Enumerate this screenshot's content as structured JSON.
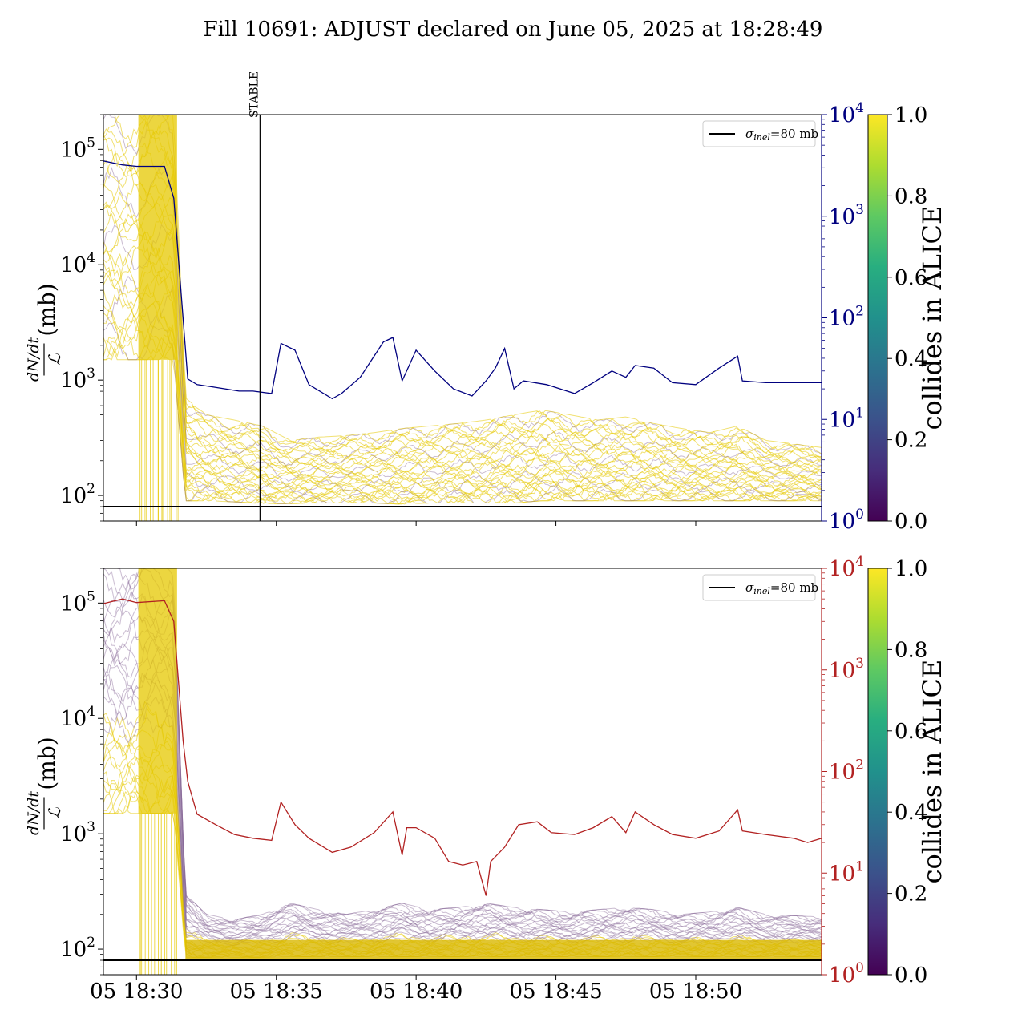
{
  "figure": {
    "title": "Fill 10691: ADJUST declared on June 05, 2025 at 18:28:49"
  },
  "chart_data": [
    {
      "type": "line",
      "panel": "top",
      "ylabel_left_numer": "dN/dt",
      "ylabel_left_denom": "ℒ",
      "ylabel_left_unit": "(mb)",
      "yscale_left": "log",
      "ylim_left": [
        60,
        200000
      ],
      "yticks_left": [
        {
          "mant": "10",
          "exp": "2",
          "value": 100
        },
        {
          "mant": "10",
          "exp": "3",
          "value": 1000
        },
        {
          "mant": "10",
          "exp": "4",
          "value": 10000
        },
        {
          "mant": "10",
          "exp": "5",
          "value": 100000
        }
      ],
      "yscale_right": "log",
      "ylim_right": [
        1,
        10000
      ],
      "yticks_right": [
        {
          "mant": "10",
          "exp": "0",
          "value": 1
        },
        {
          "mant": "10",
          "exp": "1",
          "value": 10
        },
        {
          "mant": "10",
          "exp": "2",
          "value": 100
        },
        {
          "mant": "10",
          "exp": "3",
          "value": 1000
        },
        {
          "mant": "10",
          "exp": "4",
          "value": 10000
        }
      ],
      "right_axis_color": "#00007f",
      "xlim": [
        "2025-06-05 18:28:49",
        "2025-06-05 18:54:30"
      ],
      "xticks": [
        "2025-06-05 18:30:00",
        "2025-06-05 18:35:00",
        "2025-06-05 18:40:00",
        "2025-06-05 18:45:00",
        "2025-06-05 18:50:00"
      ],
      "show_xticklabels": false,
      "annotation": {
        "text": "STABLE",
        "x": "2025-06-05 18:34:25"
      },
      "reference_line": {
        "label_sigma": "σ",
        "label_sub": "inel",
        "label_rest": "=80 mb",
        "y": 80,
        "color": "#000000"
      },
      "legend_position": "upper right",
      "series": [
        {
          "axis": "right",
          "color": "#00007f",
          "x": [
            "2025-06-05 18:28:49",
            "2025-06-05 18:29:30",
            "2025-06-05 18:30:00",
            "2025-06-05 18:31:00",
            "2025-06-05 18:31:20",
            "2025-06-05 18:31:50",
            "2025-06-05 18:32:10",
            "2025-06-05 18:32:40",
            "2025-06-05 18:33:10",
            "2025-06-05 18:33:40",
            "2025-06-05 18:34:10",
            "2025-06-05 18:34:50",
            "2025-06-05 18:35:10",
            "2025-06-05 18:35:40",
            "2025-06-05 18:36:10",
            "2025-06-05 18:37:00",
            "2025-06-05 18:37:20",
            "2025-06-05 18:38:00",
            "2025-06-05 18:38:50",
            "2025-06-05 18:39:10",
            "2025-06-05 18:39:30",
            "2025-06-05 18:40:00",
            "2025-06-05 18:40:40",
            "2025-06-05 18:41:20",
            "2025-06-05 18:42:00",
            "2025-06-05 18:42:30",
            "2025-06-05 18:42:50",
            "2025-06-05 18:43:10",
            "2025-06-05 18:43:30",
            "2025-06-05 18:43:50",
            "2025-06-05 18:44:40",
            "2025-06-05 18:45:40",
            "2025-06-05 18:46:20",
            "2025-06-05 18:47:00",
            "2025-06-05 18:47:30",
            "2025-06-05 18:47:50",
            "2025-06-05 18:48:30",
            "2025-06-05 18:49:10",
            "2025-06-05 18:50:00",
            "2025-06-05 18:50:50",
            "2025-06-05 18:51:30",
            "2025-06-05 18:51:40",
            "2025-06-05 18:52:30",
            "2025-06-05 18:53:30",
            "2025-06-05 18:54:30"
          ],
          "y": [
            3500,
            3200,
            3100,
            3100,
            1500,
            25,
            22,
            21,
            20,
            19,
            19,
            18,
            56,
            48,
            22,
            16,
            18,
            26,
            58,
            64,
            24,
            48,
            30,
            20,
            17,
            24,
            32,
            50,
            20,
            24,
            22,
            18,
            23,
            30,
            26,
            34,
            32,
            23,
            22,
            32,
            42,
            24,
            23,
            23,
            23
          ]
        },
        {
          "axis": "left",
          "name": "collides in ALICE",
          "x": [
            "2025-06-05 18:28:49",
            "2025-06-05 18:30:00",
            "2025-06-05 18:31:20",
            "2025-06-05 18:31:45",
            "2025-06-05 18:32:30",
            "2025-06-05 18:33:30",
            "2025-06-05 18:34:30",
            "2025-06-05 18:35:30",
            "2025-06-05 18:36:30",
            "2025-06-05 18:37:30",
            "2025-06-05 18:38:30",
            "2025-06-05 18:39:30",
            "2025-06-05 18:40:30",
            "2025-06-05 18:41:30",
            "2025-06-05 18:42:30",
            "2025-06-05 18:43:30",
            "2025-06-05 18:44:30",
            "2025-06-05 18:45:30",
            "2025-06-05 18:46:30",
            "2025-06-05 18:47:30",
            "2025-06-05 18:48:30",
            "2025-06-05 18:49:30",
            "2025-06-05 18:50:30",
            "2025-06-05 18:51:30",
            "2025-06-05 18:52:30",
            "2025-06-05 18:54:30"
          ],
          "y_high": [
            200000,
            200000,
            200000,
            700,
            500,
            450,
            400,
            300,
            320,
            330,
            350,
            380,
            400,
            420,
            450,
            500,
            550,
            500,
            450,
            480,
            420,
            380,
            350,
            400,
            300,
            260
          ],
          "y_low": [
            1500,
            1500,
            1500,
            90,
            90,
            88,
            85,
            85,
            86,
            86,
            86,
            84,
            86,
            86,
            86,
            86,
            90,
            90,
            90,
            90,
            90,
            90,
            90,
            90,
            90,
            90
          ]
        }
      ],
      "colorbar": {
        "label": "collides in ALICE",
        "range": [
          0.0,
          1.0
        ],
        "ticks": [
          "0.0",
          "0.2",
          "0.4",
          "0.6",
          "0.8",
          "1.0"
        ]
      }
    },
    {
      "type": "line",
      "panel": "bottom",
      "ylabel_left_numer": "dN/dt",
      "ylabel_left_denom": "ℒ",
      "ylabel_left_unit": "(mb)",
      "yscale_left": "log",
      "ylim_left": [
        60,
        200000
      ],
      "yticks_left": [
        {
          "mant": "10",
          "exp": "2",
          "value": 100
        },
        {
          "mant": "10",
          "exp": "3",
          "value": 1000
        },
        {
          "mant": "10",
          "exp": "4",
          "value": 10000
        },
        {
          "mant": "10",
          "exp": "5",
          "value": 100000
        }
      ],
      "yscale_right": "log",
      "ylim_right": [
        1,
        10000
      ],
      "yticks_right": [
        {
          "mant": "10",
          "exp": "0",
          "value": 1
        },
        {
          "mant": "10",
          "exp": "1",
          "value": 10
        },
        {
          "mant": "10",
          "exp": "2",
          "value": 100
        },
        {
          "mant": "10",
          "exp": "3",
          "value": 1000
        },
        {
          "mant": "10",
          "exp": "4",
          "value": 10000
        }
      ],
      "right_axis_color": "#b22222",
      "xlim": [
        "2025-06-05 18:28:49",
        "2025-06-05 18:54:30"
      ],
      "xticks": [
        "2025-06-05 18:30:00",
        "2025-06-05 18:35:00",
        "2025-06-05 18:40:00",
        "2025-06-05 18:45:00",
        "2025-06-05 18:50:00"
      ],
      "xticklabels": [
        "05 18:30",
        "05 18:35",
        "05 18:40",
        "05 18:45",
        "05 18:50"
      ],
      "reference_line": {
        "label_sigma": "σ",
        "label_sub": "inel",
        "label_rest": "=80 mb",
        "y": 80,
        "color": "#000000"
      },
      "legend_position": "upper right",
      "series": [
        {
          "axis": "right",
          "color": "#b22222",
          "x": [
            "2025-06-05 18:28:49",
            "2025-06-05 18:29:30",
            "2025-06-05 18:30:00",
            "2025-06-05 18:31:00",
            "2025-06-05 18:31:20",
            "2025-06-05 18:31:40",
            "2025-06-05 18:31:50",
            "2025-06-05 18:32:10",
            "2025-06-05 18:32:50",
            "2025-06-05 18:33:30",
            "2025-06-05 18:34:10",
            "2025-06-05 18:34:50",
            "2025-06-05 18:35:10",
            "2025-06-05 18:35:40",
            "2025-06-05 18:36:10",
            "2025-06-05 18:37:00",
            "2025-06-05 18:37:40",
            "2025-06-05 18:38:30",
            "2025-06-05 18:39:10",
            "2025-06-05 18:39:30",
            "2025-06-05 18:39:40",
            "2025-06-05 18:40:00",
            "2025-06-05 18:40:40",
            "2025-06-05 18:41:10",
            "2025-06-05 18:41:40",
            "2025-06-05 18:42:10",
            "2025-06-05 18:42:30",
            "2025-06-05 18:42:40",
            "2025-06-05 18:43:10",
            "2025-06-05 18:43:40",
            "2025-06-05 18:44:20",
            "2025-06-05 18:44:50",
            "2025-06-05 18:45:40",
            "2025-06-05 18:46:20",
            "2025-06-05 18:47:00",
            "2025-06-05 18:47:30",
            "2025-06-05 18:47:50",
            "2025-06-05 18:48:30",
            "2025-06-05 18:49:10",
            "2025-06-05 18:50:00",
            "2025-06-05 18:50:50",
            "2025-06-05 18:51:30",
            "2025-06-05 18:51:40",
            "2025-06-05 18:52:30",
            "2025-06-05 18:53:30",
            "2025-06-05 18:54:00",
            "2025-06-05 18:54:30"
          ],
          "y": [
            4500,
            5000,
            4600,
            4800,
            3000,
            200,
            80,
            38,
            30,
            24,
            22,
            21,
            50,
            30,
            22,
            16,
            18,
            25,
            40,
            15,
            28,
            28,
            22,
            13,
            12,
            13,
            6,
            13,
            18,
            30,
            32,
            25,
            24,
            28,
            36,
            25,
            40,
            30,
            24,
            22,
            26,
            42,
            26,
            24,
            22,
            20,
            22
          ]
        },
        {
          "axis": "left",
          "name": "collides in ALICE",
          "x": [
            "2025-06-05 18:28:49",
            "2025-06-05 18:30:00",
            "2025-06-05 18:31:20",
            "2025-06-05 18:31:45",
            "2025-06-05 18:32:30",
            "2025-06-05 18:33:30",
            "2025-06-05 18:34:30",
            "2025-06-05 18:35:30",
            "2025-06-05 18:36:30",
            "2025-06-05 18:37:30",
            "2025-06-05 18:38:30",
            "2025-06-05 18:39:30",
            "2025-06-05 18:40:30",
            "2025-06-05 18:41:30",
            "2025-06-05 18:42:30",
            "2025-06-05 18:43:30",
            "2025-06-05 18:44:30",
            "2025-06-05 18:45:30",
            "2025-06-05 18:46:30",
            "2025-06-05 18:47:30",
            "2025-06-05 18:48:30",
            "2025-06-05 18:49:30",
            "2025-06-05 18:50:30",
            "2025-06-05 18:51:30",
            "2025-06-05 18:52:30",
            "2025-06-05 18:54:30"
          ],
          "y_high": [
            200000,
            200000,
            200000,
            300,
            200,
            180,
            200,
            250,
            220,
            200,
            220,
            250,
            220,
            230,
            250,
            230,
            220,
            210,
            220,
            230,
            220,
            200,
            210,
            230,
            200,
            190
          ],
          "y_low": [
            1500,
            1500,
            1500,
            85,
            85,
            85,
            85,
            86,
            86,
            86,
            86,
            86,
            86,
            86,
            86,
            86,
            86,
            86,
            86,
            86,
            86,
            86,
            86,
            86,
            86,
            86
          ]
        }
      ],
      "colorbar": {
        "label": "collides in ALICE",
        "range": [
          0.0,
          1.0
        ],
        "ticks": [
          "0.0",
          "0.2",
          "0.4",
          "0.6",
          "0.8",
          "1.0"
        ]
      }
    }
  ]
}
